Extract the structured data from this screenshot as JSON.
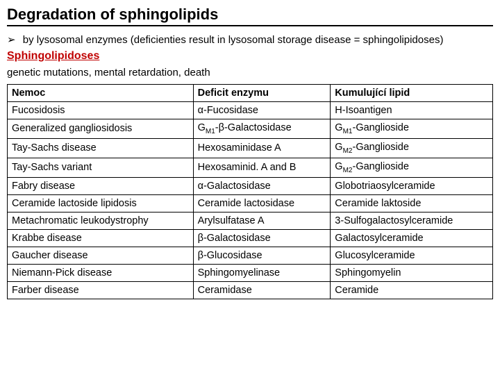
{
  "title": "Degradation of sphingolipids",
  "bullet": "by lysosomal enzymes (deficienties result in lysosomal storage disease = sphingolipidoses)",
  "section_title": "Sphingolipidoses",
  "genetic_line": "genetic mutations, mental retardation, death",
  "table": {
    "headers": [
      "Nemoc",
      "Deficit enzymu",
      "Kumulující lipid"
    ],
    "rows": [
      [
        "Fucosidosis",
        "α-Fucosidase",
        "H-Isoantigen"
      ],
      [
        "Generalized gangliosidosis",
        "G<sub>M1</sub>-β-Galactosidase",
        "G<sub>M1</sub>-Ganglioside"
      ],
      [
        "Tay-Sachs disease",
        "Hexosaminidase A",
        "G<sub>M2</sub>-Ganglioside"
      ],
      [
        "Tay-Sachs variant",
        "Hexosaminid. A and B",
        "G<sub>M2</sub>-Ganglioside"
      ],
      [
        "Fabry disease",
        "α-Galactosidase",
        "Globotriaosylceramide"
      ],
      [
        "Ceramide lactoside lipidosis",
        "Ceramide lactosidase",
        "Ceramide laktoside"
      ],
      [
        "Metachromatic leukodystrophy",
        "Arylsulfatase A",
        "3-Sulfogalactosylceramide"
      ],
      [
        "Krabbe disease",
        "β-Galactosidase",
        "Galactosylceramide"
      ],
      [
        "Gaucher disease",
        "β-Glucosidase",
        "Glucosylceramide"
      ],
      [
        "Niemann-Pick disease",
        "Sphingomyelinase",
        "Sphingomyelin"
      ],
      [
        "Farber disease",
        "Ceramidase",
        "Ceramide"
      ]
    ]
  }
}
